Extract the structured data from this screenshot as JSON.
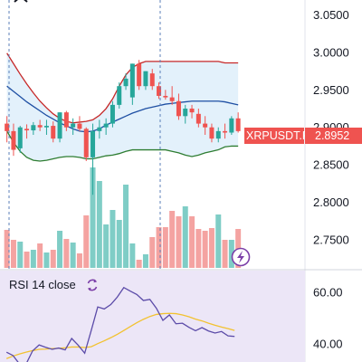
{
  "colors": {
    "up": "#26a69a",
    "down": "#ef5350",
    "vol_up": "#7fcdc6",
    "vol_down": "#f4a3a1",
    "bb_upper": "#c62828",
    "bb_lower": "#2e7d32",
    "bb_basis": "#1e4fa3",
    "bb_fill": "#e3f1fb",
    "rsi_line": "#5b4ba8",
    "rsi_ma": "#f2c230",
    "rsi_band": "#ece6f7",
    "price_tag": "#ef5350",
    "crosshair": "#5b7fb8"
  },
  "price_axis": {
    "ticks": [
      "3.0500",
      "3.0000",
      "2.9500",
      "2.9000",
      "2.8500",
      "2.8000",
      "2.7500"
    ],
    "tag_symbol": "XRPUSDT.P",
    "tag_price": "2.8952"
  },
  "rsi_panel": {
    "title": "RSI 14 close",
    "ticks": [
      "60.00",
      "40.00"
    ],
    "icon": "refresh-icon"
  },
  "chart_data": {
    "type": "candlestick",
    "series": [
      {
        "name": "XRPUSDT.P",
        "ohlc": [
          [
            2.905,
            2.915,
            2.88,
            2.895
          ],
          [
            2.895,
            2.905,
            2.862,
            2.87
          ],
          [
            2.872,
            2.902,
            2.866,
            2.9
          ],
          [
            2.898,
            2.904,
            2.885,
            2.896
          ],
          [
            2.896,
            2.907,
            2.89,
            2.903
          ],
          [
            2.903,
            2.91,
            2.895,
            2.9
          ],
          [
            2.9,
            2.91,
            2.89,
            2.902
          ],
          [
            2.902,
            2.908,
            2.88,
            2.885
          ],
          [
            2.885,
            2.92,
            2.88,
            2.92
          ],
          [
            2.92,
            2.922,
            2.895,
            2.9
          ],
          [
            2.9,
            2.912,
            2.89,
            2.905
          ],
          [
            2.905,
            2.915,
            2.895,
            2.898
          ],
          [
            2.898,
            2.9,
            2.855,
            2.86
          ],
          [
            2.86,
            2.905,
            2.81,
            2.895
          ],
          [
            2.895,
            2.91,
            2.885,
            2.9
          ],
          [
            2.9,
            2.912,
            2.89,
            2.905
          ],
          [
            2.905,
            2.935,
            2.9,
            2.93
          ],
          [
            2.93,
            2.96,
            2.925,
            2.955
          ],
          [
            2.955,
            2.972,
            2.95,
            2.965
          ],
          [
            2.94,
            2.985,
            2.93,
            2.985
          ],
          [
            2.985,
            2.99,
            2.95,
            2.955
          ],
          [
            2.955,
            2.975,
            2.95,
            2.975
          ],
          [
            2.972,
            2.978,
            2.95,
            2.955
          ],
          [
            2.955,
            2.96,
            2.938,
            2.942
          ],
          [
            2.942,
            2.95,
            2.937,
            2.94
          ],
          [
            2.94,
            2.955,
            2.93,
            2.935
          ],
          [
            2.935,
            2.945,
            2.91,
            2.915
          ],
          [
            2.915,
            2.93,
            2.905,
            2.925
          ],
          [
            2.925,
            2.93,
            2.912,
            2.92
          ],
          [
            2.918,
            2.925,
            2.9,
            2.905
          ],
          [
            2.905,
            2.915,
            2.89,
            2.9
          ],
          [
            2.9,
            2.905,
            2.88,
            2.885
          ],
          [
            2.885,
            2.9,
            2.88,
            2.895
          ],
          [
            2.895,
            2.905,
            2.885,
            2.893
          ],
          [
            2.893,
            2.915,
            2.89,
            2.912
          ],
          [
            2.912,
            2.92,
            2.893,
            2.895
          ]
        ],
        "volume": [
          42,
          31,
          29,
          18,
          20,
          27,
          17,
          20,
          41,
          32,
          28,
          16,
          58,
          111,
          96,
          48,
          64,
          53,
          92,
          27,
          9,
          15,
          34,
          45,
          45,
          63,
          57,
          68,
          57,
          43,
          41,
          44,
          59,
          31,
          31,
          43
        ]
      }
    ],
    "bollinger": {
      "upper": [
        2.999,
        2.985,
        2.971,
        2.958,
        2.946,
        2.935,
        2.926,
        2.918,
        2.912,
        2.908,
        2.906,
        2.907,
        2.908,
        2.91,
        2.916,
        2.925,
        2.938,
        2.955,
        2.97,
        2.98,
        2.985,
        2.988,
        2.988,
        2.988,
        2.988,
        2.988,
        2.988,
        2.988,
        2.988,
        2.988,
        2.988,
        2.988,
        2.988,
        2.986,
        2.986,
        2.986
      ],
      "basis": [
        2.955,
        2.948,
        2.941,
        2.934,
        2.928,
        2.922,
        2.916,
        2.911,
        2.906,
        2.902,
        2.898,
        2.895,
        2.894,
        2.895,
        2.898,
        2.903,
        2.907,
        2.911,
        2.915,
        2.919,
        2.922,
        2.925,
        2.927,
        2.929,
        2.931,
        2.932,
        2.933,
        2.934,
        2.935,
        2.935,
        2.935,
        2.935,
        2.935,
        2.934,
        2.932,
        2.93
      ],
      "lower": [
        2.895,
        2.88,
        2.868,
        2.86,
        2.856,
        2.855,
        2.856,
        2.858,
        2.86,
        2.861,
        2.861,
        2.86,
        2.858,
        2.858,
        2.86,
        2.862,
        2.863,
        2.865,
        2.868,
        2.87,
        2.87,
        2.87,
        2.87,
        2.87,
        2.87,
        2.868,
        2.866,
        2.863,
        2.861,
        2.863,
        2.866,
        2.868,
        2.87,
        2.874,
        2.875,
        2.875
      ]
    },
    "rsi": {
      "x": [
        3,
        6,
        9,
        12,
        15,
        18,
        21,
        24,
        27,
        30,
        33,
        36,
        39,
        42,
        45,
        48,
        51,
        54,
        57,
        60,
        63,
        66,
        69,
        72,
        75,
        78,
        81,
        84,
        87,
        90,
        93,
        96,
        99,
        102,
        105,
        108
      ],
      "values": [
        36.8,
        35.5,
        32.2,
        32.2,
        37.3,
        39.6,
        38.7,
        37.9,
        38.4,
        37.7,
        42.1,
        39.5,
        36.4,
        45.2,
        54.3,
        53.5,
        55.2,
        58.1,
        61.8,
        60.4,
        59.1,
        56.8,
        57.2,
        53.8,
        49.1,
        51.2,
        47.8,
        48.0,
        46.4,
        45.1,
        46.3,
        45.0,
        44.2,
        44.8,
        43.1,
        42.9
      ],
      "ma": [
        34.3,
        35.3,
        36.1,
        36.8,
        37.4,
        37.9,
        38.0,
        38.2,
        38.3,
        38.5,
        38.8,
        38.8,
        38.6,
        38.9,
        40.1,
        41.2,
        42.4,
        43.7,
        45.2,
        46.7,
        48.2,
        49.5,
        50.6,
        51.4,
        51.7,
        51.8,
        51.7,
        51.2,
        50.5,
        49.6,
        48.9,
        48.0,
        47.2,
        46.5,
        45.9,
        45.2
      ]
    },
    "price_range": [
      2.71,
      3.07
    ],
    "rsi_range": [
      33,
      68
    ],
    "rsi_band": [
      30,
      70
    ]
  }
}
